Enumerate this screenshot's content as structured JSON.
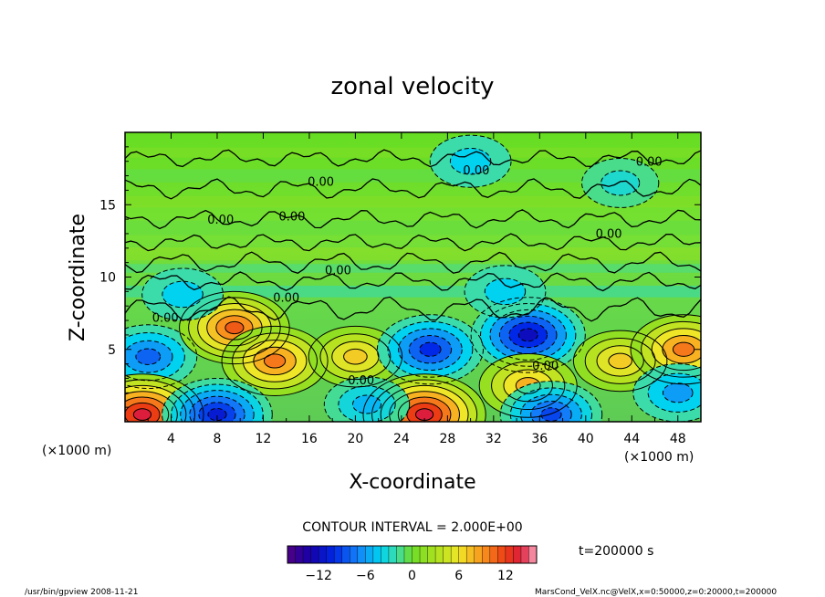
{
  "chart_data": {
    "type": "heatmap",
    "title": "zonal velocity",
    "xlabel": "X-coordinate",
    "ylabel": "Z-coordinate",
    "x_unit": "(×1000 m)",
    "y_unit": "(×1000 m)",
    "xlim": [
      0,
      50
    ],
    "ylim": [
      0,
      20
    ],
    "x_ticks": [
      "4",
      "8",
      "12",
      "16",
      "20",
      "24",
      "28",
      "32",
      "36",
      "40",
      "44",
      "48"
    ],
    "y_ticks": [
      "5",
      "10",
      "15"
    ],
    "contour_interval_text": "CONTOUR INTERVAL = 2.000E+00",
    "contour_labels": [
      "0.00",
      "0.00",
      "0.00",
      "0.00",
      "0.00",
      "0.00",
      "0.00",
      "0.00",
      "0.00",
      "0.00",
      "0.00"
    ],
    "colorbar": {
      "min": -16,
      "max": 16,
      "tick_labels": [
        "−12",
        "−6",
        "0",
        "6",
        "12"
      ],
      "tick_values": [
        -12,
        -6,
        0,
        6,
        12
      ]
    },
    "features": [
      {
        "x": 2,
        "z": 4.5,
        "value": -8
      },
      {
        "x": 9.5,
        "z": 6.5,
        "value": 11
      },
      {
        "x": 13,
        "z": 4.2,
        "value": 10
      },
      {
        "x": 20,
        "z": 4.5,
        "value": 7
      },
      {
        "x": 26.5,
        "z": 5,
        "value": -10
      },
      {
        "x": 35,
        "z": 6,
        "value": -12
      },
      {
        "x": 35,
        "z": 2.5,
        "value": 8
      },
      {
        "x": 43,
        "z": 4.2,
        "value": 7
      },
      {
        "x": 48.5,
        "z": 5,
        "value": 10
      },
      {
        "x": 48,
        "z": 2,
        "value": -6
      },
      {
        "x": 1.5,
        "z": 0.5,
        "value": 14
      },
      {
        "x": 8,
        "z": 0.5,
        "value": -11
      },
      {
        "x": 26,
        "z": 0.5,
        "value": 14
      },
      {
        "x": 37,
        "z": 0.5,
        "value": -9
      },
      {
        "x": 21,
        "z": 1.2,
        "value": -5
      },
      {
        "x": 30,
        "z": 18,
        "value": -4
      },
      {
        "x": 43,
        "z": 16.5,
        "value": -3
      },
      {
        "x": 5,
        "z": 8.8,
        "value": -4
      },
      {
        "x": 33,
        "z": 9,
        "value": -4
      }
    ]
  },
  "annotations": {
    "time": "t=200000 s",
    "footer_left": "/usr/bin/gpview   2008-11-21",
    "footer_right": "MarsCond_VelX.nc@VelX,x=0:50000,z=0:20000,t=200000"
  }
}
